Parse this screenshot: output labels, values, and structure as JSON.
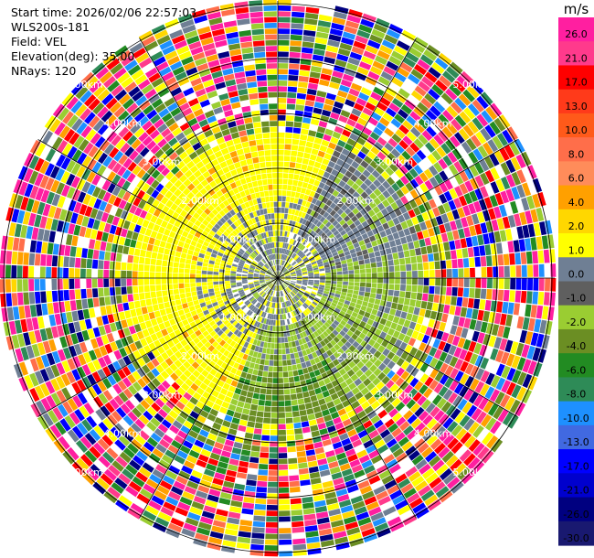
{
  "header": {
    "start_time": "Start time: 2026/02/06 22:57:03",
    "instrument": "WLS200s-181",
    "field": "Field: VEL",
    "elevation": "Elevation(deg): 35.00",
    "nrays": "NRays: 120"
  },
  "chart_data": {
    "type": "heatmap",
    "projection": "polar-ppi",
    "field": "VEL",
    "units": "m/s",
    "n_rays": 120,
    "elevation_deg": 35.0,
    "range_rings_km": [
      1.0,
      2.0,
      3.0,
      4.0,
      5.0
    ],
    "range_ring_labels": [
      "1.00km",
      "2.00km",
      "3.00km",
      "4.00km",
      "5.00km"
    ],
    "max_range_km": 5.05,
    "radial_lines_deg": [
      0,
      30,
      60,
      90,
      120,
      150,
      180,
      210,
      240,
      270,
      300,
      330
    ],
    "colorbar": {
      "label": "m/s",
      "ticks": [
        "26.0",
        "21.0",
        "17.0",
        "13.0",
        "10.0",
        "8.0",
        "6.0",
        "4.0",
        "2.0",
        "1.0",
        "0.0",
        "-1.0",
        "-2.0",
        "-4.0",
        "-6.0",
        "-8.0",
        "-10.0",
        "-13.0",
        "-17.0",
        "-21.0",
        "-26.0",
        "-30.0"
      ],
      "colors": [
        "#ff1fa0",
        "#ff3a8c",
        "#ff0000",
        "#ff3a1a",
        "#ff5a1a",
        "#ff6e4a",
        "#ff8c5a",
        "#ffa000",
        "#ffd700",
        "#ffff00",
        "#6f7f94",
        "#5f5f5f",
        "#9acd32",
        "#6b8e23",
        "#228b22",
        "#2e8b57",
        "#1e90ff",
        "#4169e1",
        "#0000ff",
        "#0000cd",
        "#000080",
        "#191970"
      ]
    }
  }
}
